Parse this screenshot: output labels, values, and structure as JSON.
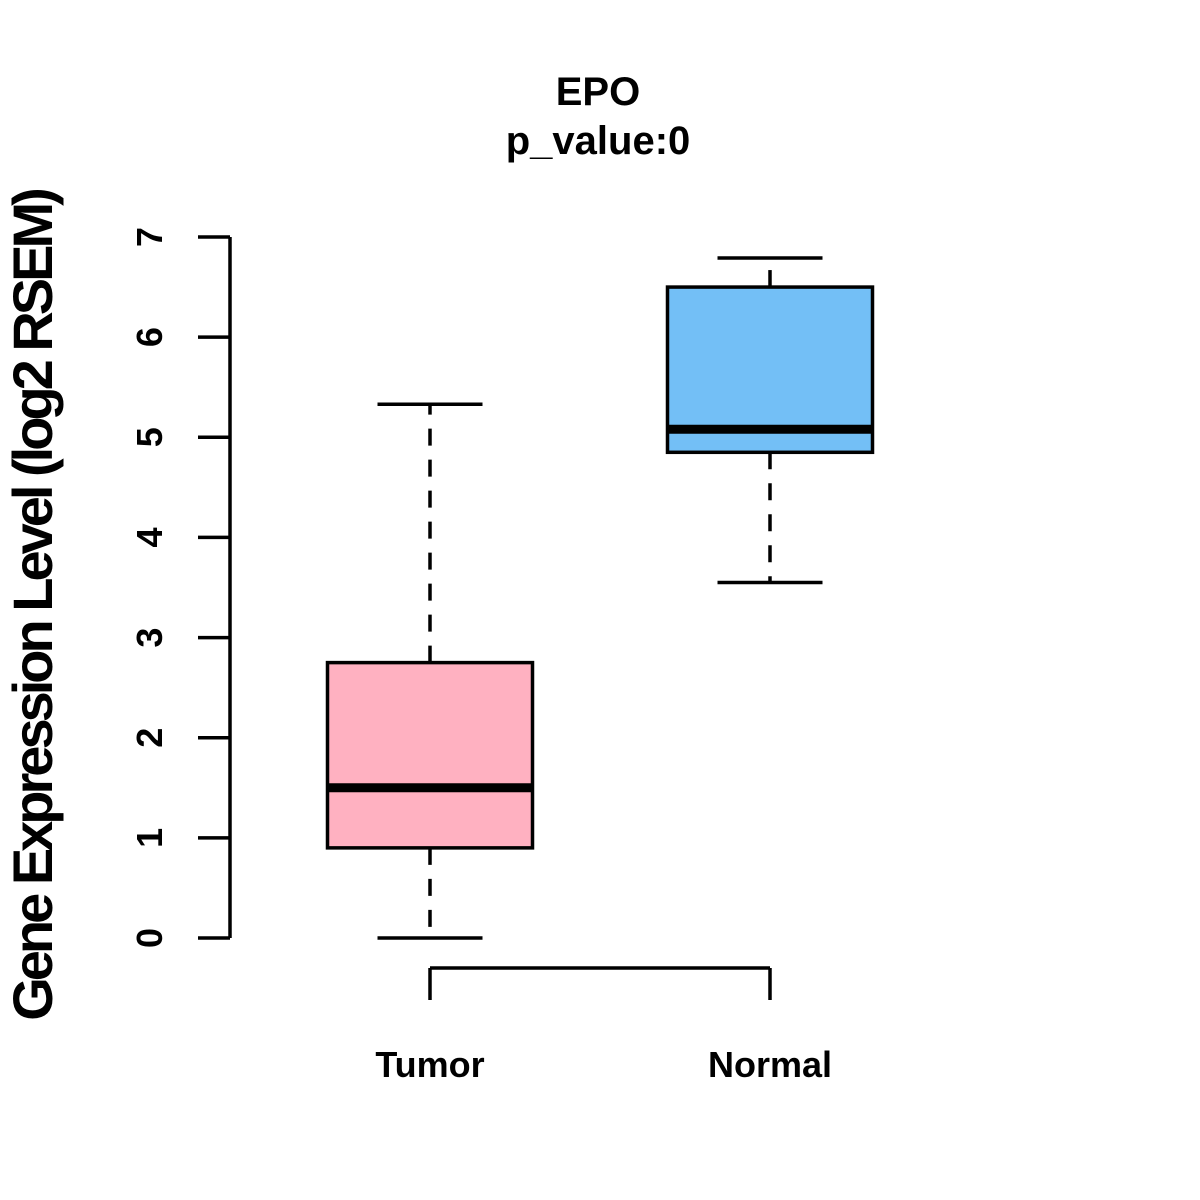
{
  "chart_data": {
    "type": "boxplot",
    "title": "EPO",
    "subtitle": "p_value:0",
    "ylabel": "Gene Expression Level (log2 RSEM)",
    "xlabel": "",
    "y_axis": {
      "min": 0,
      "max": 7,
      "ticks": [
        0,
        1,
        2,
        3,
        4,
        5,
        6,
        7
      ]
    },
    "grid": false,
    "legend": "none",
    "groups": [
      {
        "label": "Tumor",
        "fill_color": "#FFB1C1",
        "stats": {
          "whisker_low": 0,
          "q1": 0.9,
          "median": 1.5,
          "q3": 2.75,
          "whisker_high": 5.33
        }
      },
      {
        "label": "Normal",
        "fill_color": "#73BFF6",
        "stats": {
          "whisker_low": 3.55,
          "q1": 4.85,
          "median": 5.08,
          "q3": 6.5,
          "whisker_high": 6.79
        }
      }
    ],
    "line_color": "#000000",
    "background_color": "#FFFFFF"
  }
}
